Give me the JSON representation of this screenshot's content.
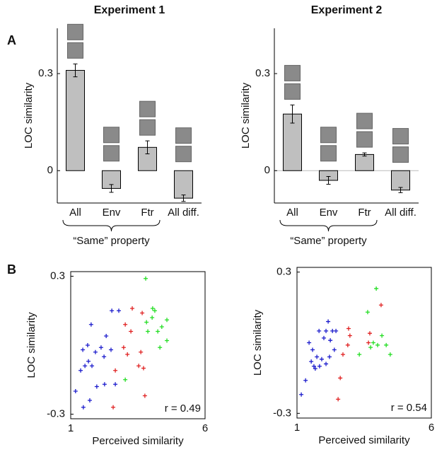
{
  "panel_labels": [
    "A",
    "B"
  ],
  "chart_data": [
    {
      "type": "bar",
      "title": "Experiment 1",
      "ylabel": "LOC similarity",
      "categories": [
        "All",
        "Env",
        "Ftr",
        "All diff."
      ],
      "values": [
        0.31,
        -0.055,
        0.072,
        -0.085
      ],
      "errors": [
        0.02,
        0.012,
        0.02,
        0.01
      ],
      "color": "#bfbfbf",
      "group_label": "“Same” property",
      "ylim": [
        -0.1,
        0.44
      ],
      "yticks": [
        0,
        0.3
      ],
      "zero_line": false
    },
    {
      "type": "bar",
      "title": "Experiment 2",
      "ylabel": "LOC similarity",
      "categories": [
        "All",
        "Env",
        "Ftr",
        "All diff."
      ],
      "values": [
        0.175,
        -0.03,
        0.05,
        -0.06
      ],
      "errors": [
        0.028,
        0.012,
        0.005,
        0.008
      ],
      "color": "#bfbfbf",
      "group_label": "“Same” property",
      "ylim": [
        -0.1,
        0.44
      ],
      "yticks": [
        0,
        0.3
      ],
      "zero_line": true
    },
    {
      "type": "scatter",
      "xlabel": "Perceived similarity",
      "ylabel": "LOC similarity",
      "annotation": "r = 0.49",
      "xlim": [
        1,
        6
      ],
      "ylim": [
        -0.32,
        0.32
      ],
      "xticks": [
        1,
        6
      ],
      "yticks": [
        -0.3,
        0.3
      ],
      "series": [
        {
          "color": "#1a1acc",
          "x": [
            2.53,
            2.79,
            2.32,
            2.13,
            2.5,
            1.92,
            1.63,
            1.76,
            1.45,
            1.66,
            1.53,
            1.37,
            1.79,
            2.24,
            1.18,
            1.47,
            1.71,
            1.97,
            2.26,
            2.66
          ],
          "values": [
            0.15,
            0.15,
            0.04,
            -0.01,
            -0.02,
            -0.03,
            0.0,
            0.09,
            -0.02,
            -0.07,
            -0.09,
            -0.11,
            -0.09,
            -0.05,
            -0.2,
            -0.27,
            -0.24,
            -0.18,
            -0.17,
            -0.17
          ]
        },
        {
          "color": "#e02020",
          "x": [
            3.03,
            3.24,
            3.29,
            3.66,
            2.97,
            3.11,
            3.61,
            3.71,
            3.53,
            2.66,
            3.76,
            2.58
          ],
          "values": [
            0.09,
            0.06,
            0.16,
            0.14,
            -0.01,
            -0.04,
            -0.03,
            -0.1,
            -0.09,
            -0.11,
            -0.22,
            -0.27
          ]
        },
        {
          "color": "#22dd22",
          "x": [
            3.79,
            4.05,
            4.13,
            3.87,
            4.03,
            4.24,
            4.39,
            4.58,
            4.58,
            4.32,
            3.03,
            3.82
          ],
          "values": [
            0.29,
            0.16,
            0.15,
            0.06,
            0.12,
            0.06,
            0.08,
            0.02,
            0.11,
            -0.01,
            -0.15,
            0.1
          ]
        }
      ]
    },
    {
      "type": "scatter",
      "xlabel": "Perceived similarity",
      "ylabel": "LOC similarity",
      "annotation": "r = 0.54",
      "xlim": [
        1,
        6
      ],
      "ylim": [
        -0.32,
        0.32
      ],
      "xticks": [
        1,
        6
      ],
      "yticks": [
        -0.3,
        0.3
      ],
      "series": [
        {
          "color": "#1a1acc",
          "x": [
            1.45,
            1.58,
            1.53,
            1.63,
            1.32,
            1.16,
            1.74,
            1.82,
            2.0,
            2.08,
            2.16,
            2.32,
            2.45,
            2.21,
            2.08,
            1.92,
            2.39,
            1.84,
            2.24,
            1.68
          ],
          "values": [
            0.0,
            -0.03,
            -0.08,
            -0.1,
            -0.16,
            -0.22,
            -0.06,
            0.05,
            0.02,
            0.05,
            0.09,
            0.05,
            0.05,
            -0.06,
            -0.09,
            -0.07,
            -0.03,
            -0.1,
            0.01,
            -0.11
          ]
        },
        {
          "color": "#e02020",
          "x": [
            2.92,
            2.97,
            2.89,
            2.71,
            2.61,
            2.53,
            3.66,
            4.13,
            3.71
          ],
          "values": [
            0.06,
            0.03,
            -0.01,
            -0.05,
            -0.15,
            -0.24,
            0.0,
            0.16,
            0.04
          ]
        },
        {
          "color": "#22dd22",
          "x": [
            3.95,
            3.63,
            4.16,
            3.84,
            4.0,
            4.32,
            4.47,
            3.74,
            3.32
          ],
          "values": [
            0.23,
            0.13,
            0.03,
            -0.0,
            -0.01,
            -0.01,
            -0.05,
            -0.02,
            -0.05
          ]
        }
      ]
    }
  ]
}
